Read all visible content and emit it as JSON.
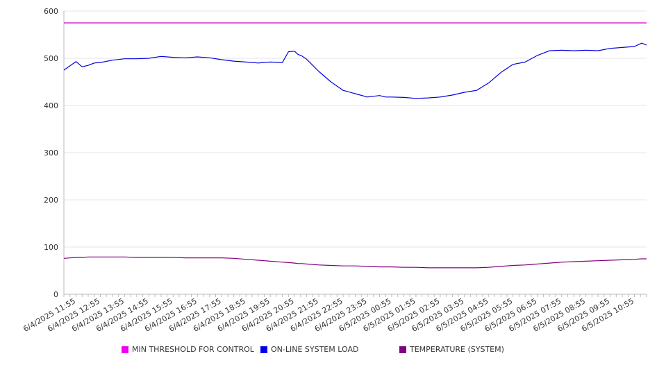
{
  "chart_data": {
    "type": "line",
    "title": "",
    "xlabel": "",
    "ylabel": "",
    "ylim": [
      0,
      600
    ],
    "yticks": [
      0,
      100,
      200,
      300,
      400,
      500,
      600
    ],
    "grid": "horizontal",
    "legend_position": "bottom",
    "x_tick_labels": [
      "6/4/2025 11:55",
      "6/4/2025 12:55",
      "6/4/2025 13:55",
      "6/4/2025 14:55",
      "6/4/2025 15:55",
      "6/4/2025 16:55",
      "6/4/2025 17:55",
      "6/4/2025 18:55",
      "6/4/2025 19:55",
      "6/4/2025 20:55",
      "6/4/2025 21:55",
      "6/4/2025 22:55",
      "6/4/2025 23:55",
      "6/5/2025 00:55",
      "6/5/2025 01:55",
      "6/5/2025 02:55",
      "6/5/2025 03:55",
      "6/5/2025 04:55",
      "6/5/2025 05:55",
      "6/5/2025 06:55",
      "6/5/2025 07:55",
      "6/5/2025 08:55",
      "6/5/2025 09:55",
      "6/5/2025 10:55"
    ],
    "x_hours": [
      0,
      0.5,
      0.75,
      1,
      1.25,
      1.5,
      2,
      2.5,
      3,
      3.5,
      4,
      4.5,
      5,
      5.5,
      6,
      6.5,
      7,
      7.5,
      8,
      8.5,
      9,
      9.25,
      9.5,
      9.65,
      9.8,
      10,
      10.25,
      10.5,
      11,
      11.5,
      12,
      12.5,
      13,
      13.25,
      13.5,
      14,
      14.5,
      15,
      15.5,
      16,
      16.5,
      17,
      17.5,
      18,
      18.5,
      19,
      19.5,
      20,
      20.5,
      21,
      21.5,
      22,
      22.5,
      23,
      23.5,
      23.8,
      24
    ],
    "series": [
      {
        "name": "MIN THRESHOLD FOR CONTROL",
        "color": "#cc00cc",
        "values": [
          575,
          575,
          575,
          575,
          575,
          575,
          575,
          575,
          575,
          575,
          575,
          575,
          575,
          575,
          575,
          575,
          575,
          575,
          575,
          575,
          575,
          575,
          575,
          575,
          575,
          575,
          575,
          575,
          575,
          575,
          575,
          575,
          575,
          575,
          575,
          575,
          575,
          575,
          575,
          575,
          575,
          575,
          575,
          575,
          575,
          575,
          575,
          575,
          575,
          575,
          575,
          575,
          575,
          575,
          575,
          575,
          575
        ]
      },
      {
        "name": "ON-LINE SYSTEM LOAD",
        "color": "#0000dd",
        "values": [
          475,
          493,
          482,
          485,
          490,
          491,
          496,
          499,
          499,
          500,
          504,
          502,
          501,
          503,
          501,
          497,
          494,
          492,
          490,
          492,
          491,
          514,
          515,
          508,
          505,
          498,
          485,
          472,
          450,
          432,
          425,
          418,
          421,
          418,
          418,
          417,
          415,
          416,
          418,
          422,
          428,
          432,
          448,
          470,
          487,
          492,
          506,
          516,
          517,
          516,
          517,
          516,
          521,
          523,
          525,
          532,
          528
        ]
      },
      {
        "name": "TEMPERATURE (SYSTEM)",
        "color": "#800080",
        "values": [
          76,
          78,
          78,
          79,
          79,
          79,
          79,
          79,
          78,
          78,
          78,
          78,
          77,
          77,
          77,
          77,
          76,
          74,
          72,
          70,
          68,
          67,
          66,
          65,
          65,
          64,
          63,
          62,
          61,
          60,
          60,
          59,
          58,
          58,
          58,
          57,
          57,
          56,
          56,
          56,
          56,
          56,
          57,
          59,
          61,
          62,
          64,
          66,
          68,
          69,
          70,
          71,
          72,
          73,
          74,
          75,
          75
        ]
      }
    ]
  }
}
